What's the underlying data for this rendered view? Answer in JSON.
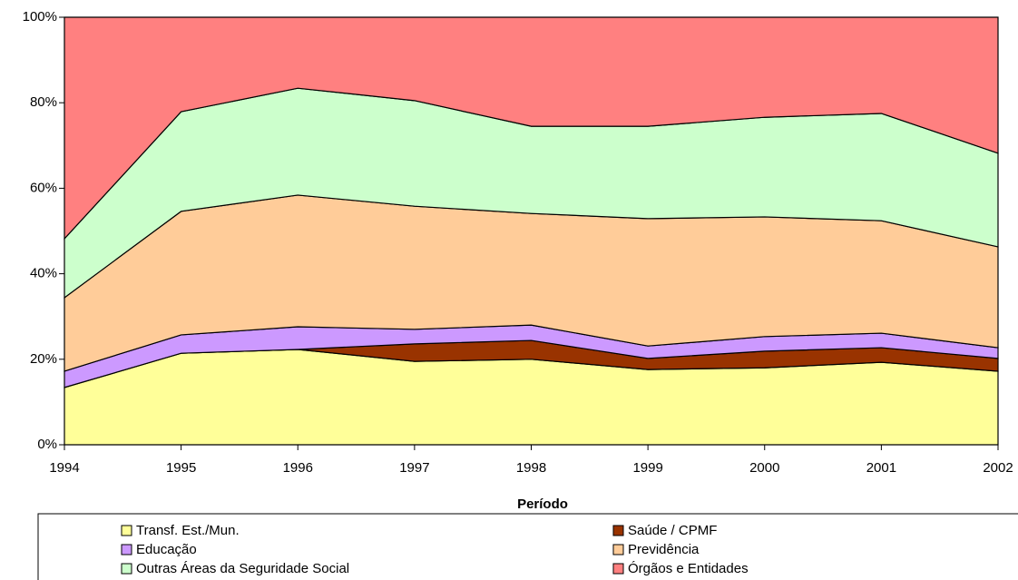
{
  "chart_data": {
    "type": "stacked_area",
    "x": [
      1994,
      1995,
      1996,
      1997,
      1998,
      1999,
      2000,
      2001,
      2002
    ],
    "xlim": [
      1994,
      2002
    ],
    "xticks": [
      1994,
      1995,
      1996,
      1997,
      1998,
      1999,
      2000,
      2001,
      2002
    ],
    "x_label": "Período",
    "ylim": [
      0,
      100
    ],
    "yticks": [
      {
        "value": 0,
        "label": "0%"
      },
      {
        "value": 20,
        "label": "20%"
      },
      {
        "value": 40,
        "label": "40%"
      },
      {
        "value": 60,
        "label": "60%"
      },
      {
        "value": 80,
        "label": "80%"
      },
      {
        "value": 100,
        "label": "100%"
      }
    ],
    "series": [
      {
        "name": "Transf. Est./Mun.",
        "color": "#FFFF99",
        "values": [
          13.4,
          21.4,
          22.3,
          19.5,
          20.0,
          17.6,
          18.0,
          19.3,
          17.2
        ]
      },
      {
        "name": "Saúde / CPMF",
        "color": "#993300",
        "values": [
          0,
          0,
          0,
          4.1,
          4.4,
          2.6,
          3.9,
          3.4,
          3.0
        ]
      },
      {
        "name": "Educação",
        "color": "#CC99FF",
        "values": [
          3.8,
          4.3,
          5.3,
          3.4,
          3.6,
          2.9,
          3.4,
          3.4,
          2.5
        ]
      },
      {
        "name": "Previdência",
        "color": "#FFCC99",
        "values": [
          17.2,
          28.9,
          30.8,
          28.8,
          26.1,
          29.8,
          28.0,
          26.3,
          23.6
        ]
      },
      {
        "name": "Outras Áreas da Seguridade Social",
        "color": "#CCFFCC",
        "values": [
          13.8,
          23.3,
          25.0,
          24.7,
          20.4,
          21.6,
          23.3,
          25.1,
          21.9
        ]
      },
      {
        "name": "Órgãos e Entidades",
        "color": "#FF8080",
        "values": [
          51.8,
          22.1,
          16.6,
          19.5,
          25.5,
          25.5,
          23.4,
          22.5,
          31.8
        ]
      }
    ]
  }
}
